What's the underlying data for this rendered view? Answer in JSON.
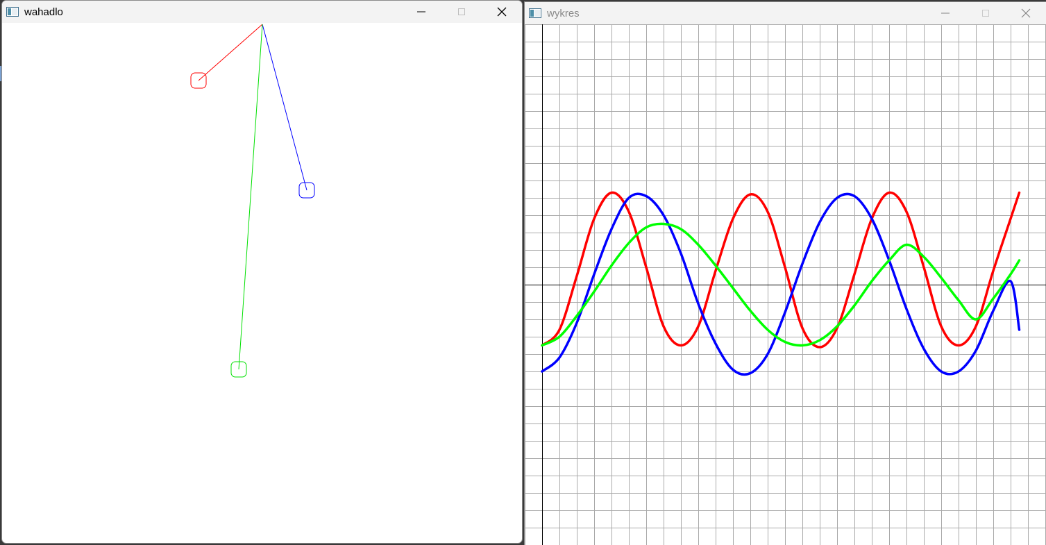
{
  "windows": [
    {
      "id": "pendulum",
      "title": "wahadlo",
      "active": true,
      "pivot": [
        375,
        2
      ],
      "bob_radius": 11,
      "pendulums": [
        {
          "color": "#ff0000",
          "bob": [
            283,
            83
          ]
        },
        {
          "color": "#0000ff",
          "bob": [
            439,
            241
          ]
        },
        {
          "color": "#00e000",
          "bob": [
            341,
            499
          ]
        }
      ]
    },
    {
      "id": "plot",
      "title": "wykres",
      "active": false
    }
  ],
  "colors": {
    "red": "#ff0000",
    "blue": "#0000ff",
    "green": "#00ff00",
    "grid": "#a9a9a9",
    "axis": "#000000"
  },
  "icons": {
    "minimize": "minimize-icon",
    "maximize": "maximize-icon",
    "close": "close-icon",
    "app": "app-window-icon"
  },
  "chart_data": {
    "type": "line",
    "title": "",
    "xlabel": "",
    "ylabel": "",
    "grid": true,
    "xlim": [
      0,
      28.7
    ],
    "ylim": [
      -15,
      15
    ],
    "series": [
      {
        "color": "#ff0000",
        "x": [
          0,
          1,
          2,
          3,
          4,
          5,
          6,
          7,
          8,
          9,
          10,
          11,
          12,
          13,
          14,
          15,
          16,
          17,
          18,
          19,
          20,
          21,
          22,
          23,
          24,
          25,
          26,
          27,
          27.5
        ],
        "y": [
          -3.5,
          -2.6,
          0.5,
          3.8,
          5.3,
          4.2,
          1.0,
          -2.4,
          -3.5,
          -2.4,
          0.8,
          3.8,
          5.2,
          4.2,
          1.0,
          -2.5,
          -3.6,
          -2.5,
          0.6,
          3.8,
          5.3,
          4.2,
          1.0,
          -2.4,
          -3.5,
          -2.4,
          0.8,
          3.8,
          5.3
        ]
      },
      {
        "color": "#0000ff",
        "x": [
          0,
          1,
          2,
          3,
          4,
          5,
          6,
          7,
          8,
          9,
          10,
          11,
          12,
          13,
          14,
          15,
          16,
          17,
          18,
          19,
          20,
          21,
          22,
          23,
          24,
          25,
          26,
          27,
          27.5
        ],
        "y": [
          -5.0,
          -4.2,
          -2.2,
          0.6,
          3.2,
          5.0,
          5.1,
          4.0,
          1.8,
          -1.1,
          -3.4,
          -4.9,
          -5.1,
          -4.0,
          -1.6,
          1.2,
          3.6,
          5.0,
          5.1,
          3.8,
          1.4,
          -1.4,
          -3.7,
          -5.0,
          -5.0,
          -3.8,
          -1.5,
          0.2,
          -2.6
        ]
      },
      {
        "color": "#00ff00",
        "x": [
          0,
          1,
          2,
          3,
          4,
          5,
          6,
          7,
          8,
          9,
          10,
          11,
          12,
          13,
          14,
          15,
          16,
          17,
          18,
          19,
          20,
          21,
          22,
          23,
          24,
          25,
          26,
          27,
          27.5
        ],
        "y": [
          -3.5,
          -3.0,
          -1.8,
          -0.4,
          1.1,
          2.4,
          3.3,
          3.5,
          3.2,
          2.3,
          1.1,
          -0.2,
          -1.5,
          -2.6,
          -3.3,
          -3.5,
          -3.2,
          -2.4,
          -1.2,
          0.2,
          1.4,
          2.3,
          1.6,
          0.4,
          -0.9,
          -2.0,
          -0.8,
          0.6,
          1.4
        ]
      }
    ]
  }
}
